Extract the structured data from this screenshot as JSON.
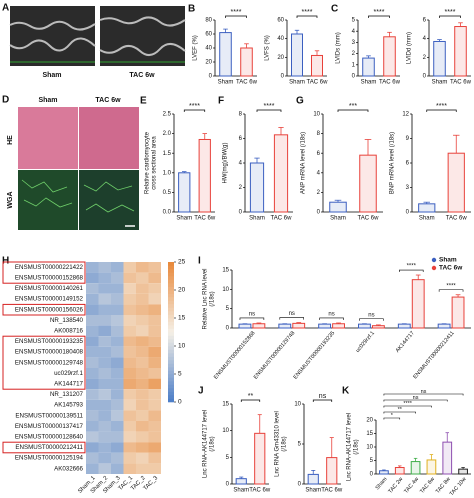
{
  "image_panels": [
    {
      "panel": "A",
      "labels": [
        "Sham",
        "TAC 6w"
      ]
    },
    {
      "panel": "D",
      "column_labels": [
        "Sham",
        "TAC 6w"
      ],
      "row_labels": [
        "HE",
        "WGA"
      ]
    }
  ],
  "chart_data": [
    {
      "type": "bar",
      "panel": "B",
      "ylabel": [
        "LVEF (%)"
      ],
      "categories": [
        "Sham",
        "TAC 6w"
      ],
      "values": [
        62,
        40
      ],
      "errors": [
        5,
        6
      ],
      "colors": [
        "#3b5fc0",
        "#e8413a"
      ],
      "ylim": [
        0,
        80
      ],
      "yticks": [
        0,
        20,
        40,
        60,
        80
      ],
      "significance": "****"
    },
    {
      "type": "bar",
      "ylabel": [
        "LVFS (%)"
      ],
      "categories": [
        "Sham",
        "TAC 6w"
      ],
      "values": [
        45,
        22
      ],
      "errors": [
        4,
        5
      ],
      "colors": [
        "#3b5fc0",
        "#e8413a"
      ],
      "ylim": [
        0,
        60
      ],
      "yticks": [
        0,
        20,
        40,
        60
      ],
      "significance": "****"
    },
    {
      "type": "bar",
      "panel": "C",
      "ylabel": [
        "LVIDs (mm)"
      ],
      "categories": [
        "Sham",
        "TAC 6w"
      ],
      "values": [
        1.6,
        3.5
      ],
      "errors": [
        0.2,
        0.4
      ],
      "colors": [
        "#3b5fc0",
        "#e8413a"
      ],
      "ylim": [
        0,
        5
      ],
      "yticks": [
        0,
        1,
        2,
        3,
        4,
        5
      ],
      "significance": "****"
    },
    {
      "type": "bar",
      "ylabel": [
        "LVIDd (mm)"
      ],
      "categories": [
        "Sham",
        "TAC 6w"
      ],
      "values": [
        3.7,
        5.3
      ],
      "errors": [
        0.2,
        0.4
      ],
      "colors": [
        "#3b5fc0",
        "#e8413a"
      ],
      "ylim": [
        0,
        6
      ],
      "yticks": [
        0,
        2,
        4,
        6
      ],
      "significance": "****"
    },
    {
      "type": "bar",
      "panel": "E",
      "ylabel": [
        "Relative cardiomyocyte",
        "cross sectional area"
      ],
      "categories": [
        "Sham",
        "TAC 6w"
      ],
      "values": [
        1.0,
        1.85
      ],
      "errors": [
        0.03,
        0.15
      ],
      "colors": [
        "#3b5fc0",
        "#e8413a"
      ],
      "ylim": [
        0,
        2.5
      ],
      "yticks": [
        {
          "value": 0,
          "label": "0.0"
        },
        0.5,
        {
          "value": 1,
          "label": "1.0"
        },
        1.5,
        {
          "value": 2,
          "label": "2.0"
        },
        2.5
      ],
      "significance": "****"
    },
    {
      "type": "bar",
      "panel": "F",
      "ylabel": [
        "HW(mg)/BW(g)"
      ],
      "categories": [
        "Sham",
        "TAC 6w"
      ],
      "values": [
        4.0,
        6.3
      ],
      "errors": [
        0.4,
        0.6
      ],
      "colors": [
        "#3b5fc0",
        "#e8413a"
      ],
      "ylim": [
        0,
        8
      ],
      "yticks": [
        0,
        2,
        4,
        6,
        8
      ],
      "significance": "****"
    },
    {
      "type": "bar",
      "panel": "G",
      "ylabel": [
        "ANP mRNA level (/18s)"
      ],
      "categories": [
        "Sham",
        "TAC 6w"
      ],
      "values": [
        1.0,
        5.8
      ],
      "errors": [
        0.2,
        1.6
      ],
      "colors": [
        "#3b5fc0",
        "#e8413a"
      ],
      "ylim": [
        0,
        10
      ],
      "yticks": [
        0,
        2,
        4,
        6,
        8,
        10
      ],
      "significance": "***"
    },
    {
      "type": "bar",
      "ylabel": [
        "BNP mRNA level (/18s)"
      ],
      "categories": [
        "Sham",
        "TAC 6w"
      ],
      "values": [
        1.0,
        7.2
      ],
      "errors": [
        0.2,
        2.2
      ],
      "colors": [
        "#3b5fc0",
        "#e8413a"
      ],
      "ylim": [
        0,
        12
      ],
      "yticks": [
        0,
        3,
        6,
        9,
        12
      ],
      "significance": "****"
    },
    {
      "type": "grouped_bar",
      "panel": "I",
      "ylabel": [
        "Relative Lnc RNA level",
        "(/18s)"
      ],
      "categories": [
        "ENSMUST00000152868",
        "ENSMUST00000129748",
        "ENSMUST00000193235",
        "uc029rzf.1",
        "AK144717",
        "ENSMUST00000212411"
      ],
      "series": [
        {
          "name": "Sham",
          "color": "#3b5fc0",
          "values": [
            1.0,
            1.0,
            1.0,
            1.0,
            1.0,
            1.0
          ],
          "errors": [
            0.1,
            0.1,
            0.1,
            0.1,
            0.1,
            0.1
          ]
        },
        {
          "name": "TAC 6w",
          "color": "#e8413a",
          "values": [
            1.1,
            1.2,
            1.1,
            0.6,
            12.5,
            8.0
          ],
          "errors": [
            0.2,
            0.2,
            0.2,
            0.2,
            1.2,
            0.6
          ]
        }
      ],
      "ylim": [
        0,
        15
      ],
      "yticks": [
        0,
        5,
        10,
        15
      ],
      "significance": [
        "ns",
        "ns",
        "ns",
        "ns",
        "****",
        "****"
      ]
    },
    {
      "type": "bar",
      "panel": "J",
      "ylabel": [
        "Lnc RNA-AK144717 level",
        "(/18s)"
      ],
      "categories": [
        "Sham",
        "TAC 6w"
      ],
      "values": [
        1.0,
        9.5
      ],
      "errors": [
        0.3,
        3.5
      ],
      "colors": [
        "#3b5fc0",
        "#e8413a"
      ],
      "ylim": [
        0,
        15
      ],
      "yticks": [
        0,
        5,
        10,
        15
      ],
      "significance": "**"
    },
    {
      "type": "bar",
      "ylabel": [
        "Lnc RNA Gm43310 level",
        "(/18s)"
      ],
      "categories": [
        "Sham",
        "TAC 6w"
      ],
      "values": [
        1.2,
        3.3
      ],
      "errors": [
        0.5,
        2.5
      ],
      "colors": [
        "#3b5fc0",
        "#e8413a"
      ],
      "ylim": [
        0,
        10
      ],
      "yticks": [
        0,
        5,
        10
      ],
      "significance": "ns"
    },
    {
      "type": "bar",
      "panel": "K",
      "ylabel": [
        "Lnc RNA-AK144717 level",
        "(/18s)"
      ],
      "categories": [
        "Sham",
        "TAC 2w",
        "TAC 4w",
        "TAC 6w",
        "TAC 8w",
        "TAC 10w"
      ],
      "values": [
        1.2,
        2.4,
        4.6,
        5.2,
        11.8,
        1.8
      ],
      "errors": [
        0.3,
        0.6,
        1.2,
        2.0,
        3.5,
        0.6
      ],
      "colors": [
        "#3b5fc0",
        "#e8413a",
        "#3fae49",
        "#e0b020",
        "#8e4fb0",
        "#222222"
      ],
      "ylim": [
        0,
        20
      ],
      "yticks": [
        0,
        5,
        10,
        15,
        20
      ],
      "comparisons": [
        {
          "pair": [
            0,
            1
          ],
          "label": "*"
        },
        {
          "pair": [
            0,
            2
          ],
          "label": "**"
        },
        {
          "pair": [
            0,
            3
          ],
          "label": "****"
        },
        {
          "pair": [
            0,
            4
          ],
          "label": "ns"
        },
        {
          "pair": [
            0,
            5
          ],
          "label": "ns"
        }
      ]
    },
    {
      "type": "heatmap",
      "panel": "H",
      "rows": [
        "ENSMUST00000221422",
        "ENSMUST00000152868",
        "ENSMUST00000140261",
        "ENSMUST00000149152",
        "ENSMUST00000156026",
        "NR_138540",
        "AK008716",
        "ENSMUST00000193235",
        "ENSMUST00000180408",
        "ENSMUST00000129748",
        "uc029rzf.1",
        "AK144717",
        "NR_131207",
        "AK145793",
        "ENSMUST00000139511",
        "ENSMUST00000137417",
        "ENSMUST00000128640",
        "ENSMUST00000212411",
        "ENSMUST00000125194",
        "AK032666"
      ],
      "columns": [
        "Sham_1",
        "Sham_2",
        "Sham_3",
        "TAC_1",
        "TAC_2",
        "TAC_3"
      ],
      "values": [
        [
          6,
          7,
          6,
          17,
          19,
          18
        ],
        [
          5,
          6,
          7,
          18,
          17,
          19
        ],
        [
          7,
          6,
          6,
          16,
          18,
          17
        ],
        [
          6,
          8,
          7,
          17,
          18,
          16
        ],
        [
          5,
          6,
          6,
          18,
          19,
          20
        ],
        [
          7,
          7,
          8,
          16,
          17,
          18
        ],
        [
          6,
          5,
          7,
          17,
          16,
          18
        ],
        [
          5,
          7,
          6,
          19,
          20,
          19
        ],
        [
          6,
          6,
          7,
          18,
          19,
          21
        ],
        [
          7,
          6,
          5,
          19,
          18,
          20
        ],
        [
          6,
          7,
          6,
          20,
          19,
          18
        ],
        [
          5,
          6,
          6,
          21,
          20,
          22
        ],
        [
          7,
          8,
          6,
          17,
          18,
          17
        ],
        [
          6,
          6,
          7,
          16,
          18,
          17
        ],
        [
          7,
          6,
          8,
          18,
          17,
          19
        ],
        [
          6,
          7,
          6,
          17,
          19,
          18
        ],
        [
          8,
          7,
          7,
          16,
          17,
          18
        ],
        [
          5,
          6,
          5,
          19,
          20,
          21
        ],
        [
          7,
          6,
          7,
          17,
          16,
          18
        ],
        [
          6,
          8,
          6,
          18,
          17,
          17
        ]
      ],
      "highlight_rows": [
        [
          0,
          1
        ],
        [
          4,
          4
        ],
        [
          7,
          11
        ],
        [
          17,
          17
        ]
      ],
      "clim": [
        0,
        25
      ],
      "cticks": [
        0,
        5,
        10,
        15,
        20,
        25
      ]
    }
  ]
}
